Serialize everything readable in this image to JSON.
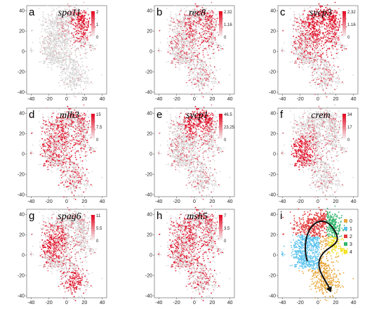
{
  "figure": {
    "description": "",
    "panels_layout": "3x3 grid"
  },
  "chart_data": [
    {
      "panel": "a",
      "type": "scatter",
      "title": "spo11",
      "xticks": [
        -40,
        -20,
        0,
        20,
        40
      ],
      "yticks": [
        40,
        20,
        0,
        -20,
        -40
      ],
      "xlim": [
        -45,
        45
      ],
      "ylim": [
        -42,
        45
      ],
      "colorbar": {
        "min": 0,
        "mid": 1,
        "max": 2,
        "ticks": [
          "2",
          "1",
          "0"
        ],
        "low_color": "#d9d9d9",
        "high_color": "#e3001b"
      },
      "expression_focus": "upper-right"
    },
    {
      "panel": "b",
      "type": "scatter",
      "title": "rec8",
      "xticks": [
        -40,
        -20,
        0,
        20,
        40
      ],
      "yticks": [
        40,
        20,
        0,
        -20,
        -40
      ],
      "xlim": [
        -45,
        45
      ],
      "ylim": [
        -42,
        45
      ],
      "colorbar": {
        "min": 0,
        "mid": 1.16,
        "max": 2.32,
        "ticks": [
          "2.32",
          "1.16",
          "0"
        ],
        "low_color": "#d9d9d9",
        "high_color": "#e3001b"
      },
      "expression_focus": "sparse"
    },
    {
      "panel": "c",
      "type": "scatter",
      "title": "sycp3",
      "xticks": [
        -40,
        -20,
        0,
        20,
        40
      ],
      "yticks": [
        40,
        20,
        0,
        -20,
        -40
      ],
      "xlim": [
        -45,
        45
      ],
      "ylim": [
        -42,
        45
      ],
      "colorbar": {
        "min": 0,
        "mid": 1.16,
        "max": 2.32,
        "ticks": [
          "2.32",
          "1.16",
          "0"
        ],
        "low_color": "#d9d9d9",
        "high_color": "#e3001b"
      },
      "expression_focus": "upper"
    },
    {
      "panel": "d",
      "type": "scatter",
      "title": "mlh3",
      "xticks": [
        -40,
        -20,
        0,
        20,
        40
      ],
      "yticks": [
        40,
        20,
        0,
        -20,
        -40
      ],
      "xlim": [
        -45,
        45
      ],
      "ylim": [
        -42,
        45
      ],
      "colorbar": {
        "min": 0,
        "mid": 7.5,
        "max": 15,
        "ticks": [
          "15",
          "7.5",
          "0"
        ],
        "low_color": "#d9d9d9",
        "high_color": "#e3001b"
      },
      "expression_focus": "diffuse"
    },
    {
      "panel": "e",
      "type": "scatter",
      "title": "sycp1",
      "xticks": [
        -40,
        -20,
        0,
        20,
        40
      ],
      "yticks": [
        40,
        20,
        0,
        -20,
        -40
      ],
      "xlim": [
        -45,
        45
      ],
      "ylim": [
        -42,
        45
      ],
      "colorbar": {
        "min": 0,
        "mid": 23.25,
        "max": 46.5,
        "ticks": [
          "46.5",
          "23.25",
          "0"
        ],
        "low_color": "#d9d9d9",
        "high_color": "#e3001b"
      },
      "expression_focus": "top"
    },
    {
      "panel": "f",
      "type": "scatter",
      "title": "crem",
      "xticks": [
        -40,
        -20,
        0,
        20,
        40
      ],
      "yticks": [
        40,
        20,
        0,
        -20,
        -40
      ],
      "xlim": [
        -45,
        45
      ],
      "ylim": [
        -42,
        45
      ],
      "colorbar": {
        "min": 0,
        "mid": 17,
        "max": 34,
        "ticks": [
          "34",
          "17",
          "0"
        ],
        "low_color": "#d9d9d9",
        "high_color": "#e3001b"
      },
      "expression_focus": "left"
    },
    {
      "panel": "g",
      "type": "scatter",
      "title": "spag6",
      "xticks": [
        -40,
        -20,
        0,
        20,
        40
      ],
      "yticks": [
        40,
        20,
        0,
        -20,
        -40
      ],
      "xlim": [
        -45,
        45
      ],
      "ylim": [
        -42,
        45
      ],
      "colorbar": {
        "min": 0,
        "mid": 5.5,
        "max": 11,
        "ticks": [
          "11",
          "5.5",
          "0"
        ],
        "low_color": "#d9d9d9",
        "high_color": "#e3001b"
      },
      "expression_focus": "left-and-bottom"
    },
    {
      "panel": "h",
      "type": "scatter",
      "title": "msh5",
      "xticks": [
        -40,
        -20,
        0,
        20,
        40
      ],
      "yticks": [
        40,
        20,
        0,
        -20,
        -40
      ],
      "xlim": [
        -45,
        45
      ],
      "ylim": [
        -42,
        45
      ],
      "colorbar": {
        "min": 0,
        "mid": 3.5,
        "max": 7,
        "ticks": [
          "7",
          "3.5",
          "0"
        ],
        "low_color": "#d9d9d9",
        "high_color": "#e3001b"
      },
      "expression_focus": "diffuse"
    },
    {
      "panel": "i",
      "type": "scatter",
      "title": "",
      "xticks": [
        -40,
        -20,
        0,
        20,
        40
      ],
      "yticks": [
        40,
        20,
        0,
        -20,
        -40
      ],
      "xlim": [
        -45,
        45
      ],
      "ylim": [
        -42,
        45
      ],
      "legend_position": "right",
      "clusters": [
        {
          "name": "0",
          "color": "#e8a73a"
        },
        {
          "name": "1",
          "color": "#5bc3ee"
        },
        {
          "name": "2",
          "color": "#e03a3a"
        },
        {
          "name": "3",
          "color": "#2fb56a"
        },
        {
          "name": "4",
          "color": "#f2e21d"
        }
      ],
      "trajectory_arrow": true
    }
  ]
}
